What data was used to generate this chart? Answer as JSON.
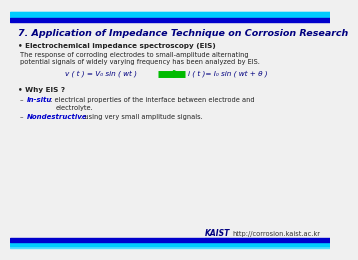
{
  "title": "7. Application of Impedance Technique on Corrosion Research",
  "title_color": "#000080",
  "title_fontsize": 6.8,
  "bg_color": "#f0f0f0",
  "bullet1_bold": "Electrochemical impedance spectroscopy (EIS)",
  "bullet1_line1": "The response of corroding electrodes to small-amplitude alternating",
  "bullet1_line2": "potential signals of widely varying frequency has been analyzed by EIS.",
  "eq_left": "v ( t ) = V₀ sin ( wt )",
  "eq_right": "i ( t )= I₀ sin ( wt + θ )",
  "arrow_color": "#00bb00",
  "eq_color": "#000080",
  "bullet2_bold": "Why EIS ?",
  "item1_highlight": "In-situ",
  "item1_rest": " : electrical properties of the interface between electrode and",
  "item1_rest2": "electrolyte.",
  "item2_highlight": "Nondestructive",
  "item2_rest": " : using very small amplitude signals.",
  "item_color": "#0000cc",
  "body_color": "#222222",
  "url": "http://corrosion.kaist.ac.kr",
  "kaist_color": "#000080",
  "bar1_color": "#00ccff",
  "bar2_color": "#0000cc",
  "bar3_color": "#55ddff"
}
